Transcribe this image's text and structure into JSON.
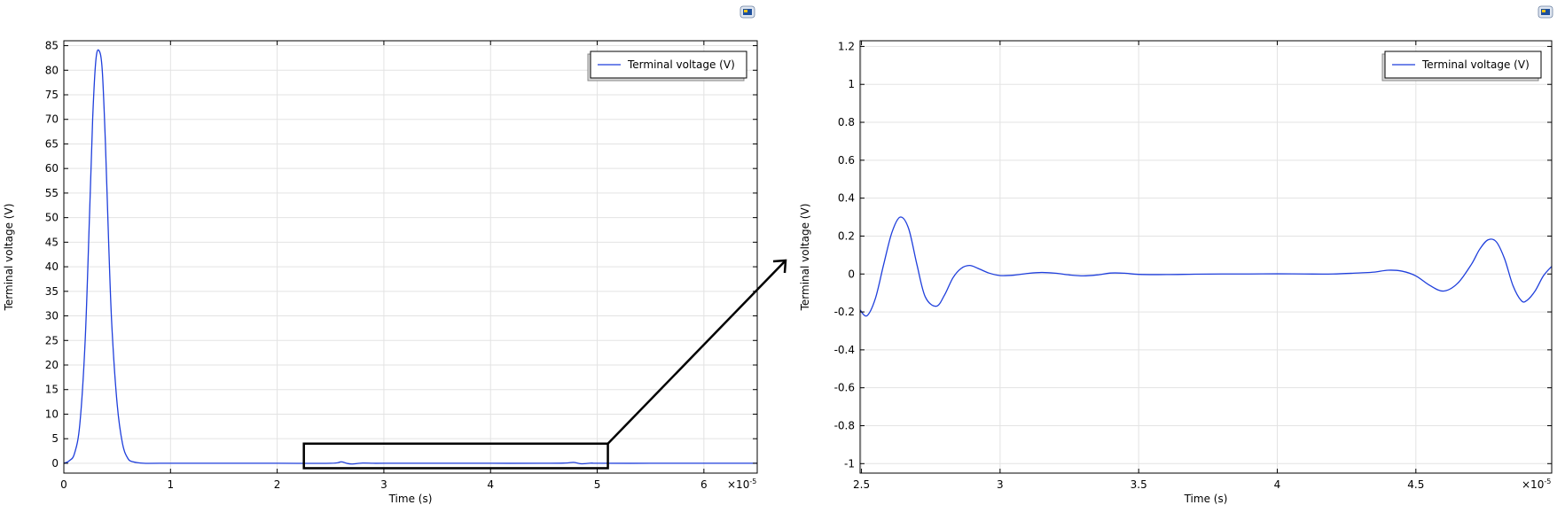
{
  "chart_data": [
    {
      "type": "line",
      "title": "",
      "xlabel": "Time (s)",
      "ylabel": "Terminal voltage (V)",
      "x_multiplier": "×10",
      "x_multiplier_exp": "-5",
      "xlim": [
        0,
        6.5
      ],
      "ylim": [
        -2,
        86
      ],
      "xticks": [
        0,
        1,
        2,
        3,
        4,
        5,
        6
      ],
      "yticks": [
        0,
        5,
        10,
        15,
        20,
        25,
        30,
        35,
        40,
        45,
        50,
        55,
        60,
        65,
        70,
        75,
        80,
        85
      ],
      "grid": true,
      "legend_position": "top-right",
      "series": [
        {
          "name": "Terminal voltage (V)",
          "color": "#1f3fdc",
          "x": [
            0,
            0.05,
            0.1,
            0.15,
            0.2,
            0.24,
            0.27,
            0.3,
            0.33,
            0.36,
            0.39,
            0.42,
            0.45,
            0.5,
            0.55,
            0.6,
            0.65,
            0.75,
            0.9,
            1.5,
            2.0,
            2.5,
            2.6,
            2.65,
            2.7,
            2.8,
            2.9,
            3.0,
            3.5,
            4.0,
            4.5,
            4.7,
            4.78,
            4.85,
            4.95,
            5.0,
            5.5,
            6.0,
            6.5
          ],
          "y": [
            0,
            0.5,
            2,
            8,
            25,
            50,
            70,
            82,
            84,
            80,
            65,
            45,
            28,
            12,
            4,
            1,
            0.3,
            0,
            0,
            0,
            0,
            0,
            0.3,
            0,
            -0.15,
            0.05,
            0,
            0,
            0,
            0,
            0,
            0.05,
            0.18,
            -0.1,
            0.05,
            0,
            0,
            0,
            0
          ]
        }
      ],
      "annotation": {
        "zoom_box_x": [
          2.25,
          5.1
        ],
        "zoom_box_y": [
          -1,
          4
        ]
      }
    },
    {
      "type": "line",
      "title": "",
      "xlabel": "Time (s)",
      "ylabel": "Terminal voltage (V)",
      "x_multiplier": "×10",
      "x_multiplier_exp": "-5",
      "xlim": [
        2.495,
        4.99
      ],
      "ylim": [
        -1.05,
        1.23
      ],
      "xticks": [
        2.5,
        3,
        3.5,
        4,
        4.5
      ],
      "yticks": [
        -1,
        -0.8,
        -0.6,
        -0.4,
        -0.2,
        0,
        0.2,
        0.4,
        0.6,
        0.8,
        1,
        1.2
      ],
      "grid": true,
      "legend_position": "top-right",
      "series": [
        {
          "name": "Terminal voltage (V)",
          "color": "#1f3fdc",
          "x": [
            2.495,
            2.52,
            2.55,
            2.58,
            2.61,
            2.64,
            2.67,
            2.7,
            2.73,
            2.77,
            2.8,
            2.83,
            2.86,
            2.89,
            2.92,
            2.96,
            3.0,
            3.05,
            3.1,
            3.15,
            3.2,
            3.25,
            3.3,
            3.35,
            3.4,
            3.45,
            3.5,
            3.6,
            3.7,
            3.8,
            3.9,
            4.0,
            4.1,
            4.2,
            4.3,
            4.35,
            4.4,
            4.45,
            4.5,
            4.55,
            4.6,
            4.65,
            4.7,
            4.73,
            4.76,
            4.79,
            4.82,
            4.85,
            4.88,
            4.9,
            4.93,
            4.96,
            4.99
          ],
          "y": [
            -0.19,
            -0.22,
            -0.13,
            0.05,
            0.22,
            0.3,
            0.24,
            0.05,
            -0.12,
            -0.17,
            -0.11,
            -0.02,
            0.03,
            0.045,
            0.03,
            0.005,
            -0.008,
            -0.006,
            0.003,
            0.008,
            0.004,
            -0.005,
            -0.01,
            -0.005,
            0.005,
            0.004,
            -0.002,
            -0.003,
            -0.001,
            0.0,
            0.0,
            0.001,
            0.0,
            0.0,
            0.006,
            0.01,
            0.02,
            0.015,
            -0.01,
            -0.06,
            -0.09,
            -0.05,
            0.05,
            0.13,
            0.18,
            0.17,
            0.08,
            -0.06,
            -0.14,
            -0.14,
            -0.09,
            -0.01,
            0.04
          ]
        }
      ]
    }
  ]
}
